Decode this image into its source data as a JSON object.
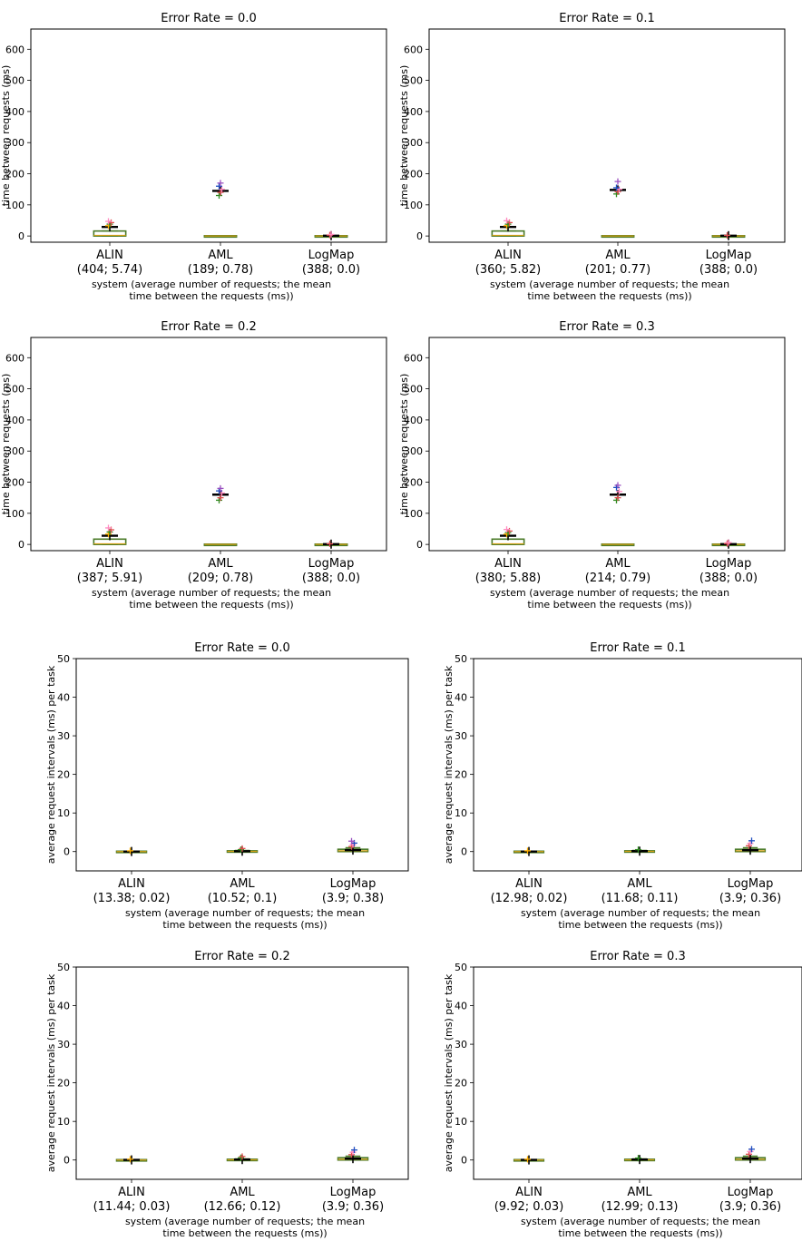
{
  "chart_data": [
    {
      "type": "box",
      "title": "Error Rate = 0.0",
      "ylabel": "time between requests (ms)",
      "xlabel_lines": [
        "system (average number of requests; the mean",
        "time between the requests (ms))"
      ],
      "yticks": [
        0,
        100,
        200,
        300,
        400,
        500,
        600
      ],
      "ylim": [
        -20,
        665
      ],
      "categories": [
        {
          "name": "ALIN",
          "stats": "(404; 5.74)"
        },
        {
          "name": "AML",
          "stats": "(189; 0.78)"
        },
        {
          "name": "LogMap",
          "stats": "(388; 0.0)"
        }
      ],
      "boxes": [
        {
          "q1": 0,
          "median": 2,
          "q3": 16,
          "whisker_low": 0,
          "whisker_high": 16,
          "mean": 29,
          "outliers": [
            33,
            38,
            43,
            47
          ]
        },
        {
          "q1": 0,
          "median": 0,
          "q3": 1,
          "whisker_low": 0,
          "whisker_high": 1,
          "mean": 145,
          "outliers": [
            130,
            140,
            150,
            160,
            170
          ]
        },
        {
          "q1": 0,
          "median": 0,
          "q3": 1,
          "whisker_low": 0,
          "whisker_high": 1,
          "mean": 1,
          "outliers": [
            3,
            5
          ]
        }
      ]
    },
    {
      "type": "box",
      "title": "Error Rate = 0.1",
      "ylabel": "time between requests (ms)",
      "xlabel_lines": [
        "system (average number of requests; the mean",
        "time between the requests (ms))"
      ],
      "yticks": [
        0,
        100,
        200,
        300,
        400,
        500,
        600
      ],
      "ylim": [
        -20,
        665
      ],
      "categories": [
        {
          "name": "ALIN",
          "stats": "(360; 5.82)"
        },
        {
          "name": "AML",
          "stats": "(201; 0.77)"
        },
        {
          "name": "LogMap",
          "stats": "(388; 0.0)"
        }
      ],
      "boxes": [
        {
          "q1": 0,
          "median": 2,
          "q3": 16,
          "whisker_low": 0,
          "whisker_high": 16,
          "mean": 29,
          "outliers": [
            33,
            38,
            43,
            49
          ]
        },
        {
          "q1": 0,
          "median": 0,
          "q3": 1,
          "whisker_low": 0,
          "whisker_high": 1,
          "mean": 148,
          "outliers": [
            135,
            142,
            150,
            155,
            175
          ]
        },
        {
          "q1": 0,
          "median": 0,
          "q3": 1,
          "whisker_low": 0,
          "whisker_high": 1,
          "mean": 1,
          "outliers": [
            2
          ]
        }
      ]
    },
    {
      "type": "box",
      "title": "Error Rate = 0.2",
      "ylabel": "time between requests (ms)",
      "xlabel_lines": [
        "system (average number of requests; the mean",
        "time between the requests (ms))"
      ],
      "yticks": [
        0,
        100,
        200,
        300,
        400,
        500,
        600
      ],
      "ylim": [
        -20,
        665
      ],
      "categories": [
        {
          "name": "ALIN",
          "stats": "(387; 5.91)"
        },
        {
          "name": "AML",
          "stats": "(209; 0.78)"
        },
        {
          "name": "LogMap",
          "stats": "(388; 0.0)"
        }
      ],
      "boxes": [
        {
          "q1": 0,
          "median": 2,
          "q3": 17,
          "whisker_low": 0,
          "whisker_high": 17,
          "mean": 28,
          "outliers": [
            33,
            40,
            47,
            53
          ]
        },
        {
          "q1": 0,
          "median": 0,
          "q3": 1,
          "whisker_low": 0,
          "whisker_high": 1,
          "mean": 160,
          "outliers": [
            142,
            150,
            165,
            172,
            180
          ]
        },
        {
          "q1": 0,
          "median": 0,
          "q3": 1,
          "whisker_low": 0,
          "whisker_high": 1,
          "mean": 1,
          "outliers": [
            2
          ]
        }
      ]
    },
    {
      "type": "box",
      "title": "Error Rate = 0.3",
      "ylabel": "time between requests (ms)",
      "xlabel_lines": [
        "system (average number of requests; the mean",
        "time between the requests (ms))"
      ],
      "yticks": [
        0,
        100,
        200,
        300,
        400,
        500,
        600
      ],
      "ylim": [
        -20,
        665
      ],
      "categories": [
        {
          "name": "ALIN",
          "stats": "(380; 5.88)"
        },
        {
          "name": "AML",
          "stats": "(214; 0.79)"
        },
        {
          "name": "LogMap",
          "stats": "(388; 0.0)"
        }
      ],
      "boxes": [
        {
          "q1": 0,
          "median": 2,
          "q3": 17,
          "whisker_low": 0,
          "whisker_high": 17,
          "mean": 28,
          "outliers": [
            33,
            38,
            43,
            48
          ]
        },
        {
          "q1": 0,
          "median": 0,
          "q3": 1,
          "whisker_low": 0,
          "whisker_high": 1,
          "mean": 160,
          "outliers": [
            142,
            150,
            170,
            183,
            190
          ]
        },
        {
          "q1": 0,
          "median": 0,
          "q3": 1,
          "whisker_low": 0,
          "whisker_high": 1,
          "mean": 1,
          "outliers": [
            3,
            6
          ]
        }
      ]
    },
    {
      "type": "box",
      "title": "Error Rate = 0.0",
      "ylabel": "average request intervals (ms) per task",
      "xlabel_lines": [
        "system (average number of requests; the mean",
        "time between the requests (ms))"
      ],
      "yticks": [
        0,
        10,
        20,
        30,
        40,
        50
      ],
      "ylim": [
        -5,
        50
      ],
      "categories": [
        {
          "name": "ALIN",
          "stats": "(13.38; 0.02)"
        },
        {
          "name": "AML",
          "stats": "(10.52; 0.1)"
        },
        {
          "name": "LogMap",
          "stats": "(3.9; 0.38)"
        }
      ],
      "boxes": [
        {
          "q1": 0,
          "median": 0,
          "q3": 0.1,
          "whisker_low": 0,
          "whisker_high": 0.1,
          "mean": 0.02,
          "outliers": [
            0.2
          ]
        },
        {
          "q1": 0,
          "median": 0.05,
          "q3": 0.2,
          "whisker_low": 0,
          "whisker_high": 0.3,
          "mean": 0.1,
          "outliers": [
            0.5,
            0.8
          ]
        },
        {
          "q1": 0,
          "median": 0.2,
          "q3": 0.6,
          "whisker_low": 0,
          "whisker_high": 1,
          "mean": 0.38,
          "outliers": [
            1.3,
            1.8,
            2.2,
            2.7
          ]
        }
      ]
    },
    {
      "type": "box",
      "title": "Error Rate = 0.1",
      "ylabel": "average request intervals (ms) per task",
      "xlabel_lines": [
        "system (average number of requests; the mean",
        "time between the requests (ms))"
      ],
      "yticks": [
        0,
        10,
        20,
        30,
        40,
        50
      ],
      "ylim": [
        -5,
        50
      ],
      "categories": [
        {
          "name": "ALIN",
          "stats": "(12.98; 0.02)"
        },
        {
          "name": "AML",
          "stats": "(11.68; 0.11)"
        },
        {
          "name": "LogMap",
          "stats": "(3.9; 0.36)"
        }
      ],
      "boxes": [
        {
          "q1": 0,
          "median": 0,
          "q3": 0.1,
          "whisker_low": 0,
          "whisker_high": 0.1,
          "mean": 0.02,
          "outliers": [
            0.2
          ]
        },
        {
          "q1": 0,
          "median": 0.05,
          "q3": 0.2,
          "whisker_low": 0,
          "whisker_high": 0.3,
          "mean": 0.11,
          "outliers": [
            0.5
          ]
        },
        {
          "q1": 0,
          "median": 0.2,
          "q3": 0.6,
          "whisker_low": 0,
          "whisker_high": 1,
          "mean": 0.36,
          "outliers": [
            1.5,
            2.1,
            2.8
          ]
        }
      ]
    },
    {
      "type": "box",
      "title": "Error Rate = 0.2",
      "ylabel": "average request intervals (ms) per task",
      "xlabel_lines": [
        "system (average number of requests; the mean",
        "time between the requests (ms))"
      ],
      "yticks": [
        0,
        10,
        20,
        30,
        40,
        50
      ],
      "ylim": [
        -5,
        50
      ],
      "categories": [
        {
          "name": "ALIN",
          "stats": "(11.44; 0.03)"
        },
        {
          "name": "AML",
          "stats": "(12.66; 0.12)"
        },
        {
          "name": "LogMap",
          "stats": "(3.9; 0.36)"
        }
      ],
      "boxes": [
        {
          "q1": 0,
          "median": 0,
          "q3": 0.1,
          "whisker_low": 0,
          "whisker_high": 0.1,
          "mean": 0.03,
          "outliers": [
            0.2
          ]
        },
        {
          "q1": 0,
          "median": 0.05,
          "q3": 0.2,
          "whisker_low": 0,
          "whisker_high": 0.3,
          "mean": 0.12,
          "outliers": [
            0.6,
            0.9
          ]
        },
        {
          "q1": 0,
          "median": 0.2,
          "q3": 0.6,
          "whisker_low": 0,
          "whisker_high": 1,
          "mean": 0.36,
          "outliers": [
            1.4,
            2.0,
            2.6
          ]
        }
      ]
    },
    {
      "type": "box",
      "title": "Error Rate = 0.3",
      "ylabel": "average request intervals (ms) per task",
      "xlabel_lines": [
        "system (average number of requests; the mean",
        "time between the requests (ms))"
      ],
      "yticks": [
        0,
        10,
        20,
        30,
        40,
        50
      ],
      "ylim": [
        -5,
        50
      ],
      "categories": [
        {
          "name": "ALIN",
          "stats": "(9.92; 0.03)"
        },
        {
          "name": "AML",
          "stats": "(12.99; 0.13)"
        },
        {
          "name": "LogMap",
          "stats": "(3.9; 0.36)"
        }
      ],
      "boxes": [
        {
          "q1": 0,
          "median": 0,
          "q3": 0.1,
          "whisker_low": 0,
          "whisker_high": 0.1,
          "mean": 0.03,
          "outliers": [
            0.2
          ]
        },
        {
          "q1": 0,
          "median": 0.05,
          "q3": 0.2,
          "whisker_low": 0,
          "whisker_high": 0.3,
          "mean": 0.13,
          "outliers": [
            0.5
          ]
        },
        {
          "q1": 0,
          "median": 0.2,
          "q3": 0.6,
          "whisker_low": 0,
          "whisker_high": 1,
          "mean": 0.36,
          "outliers": [
            1.5,
            2.2,
            2.8
          ]
        }
      ]
    }
  ],
  "colors": {
    "box": "#4a7a28",
    "median": "#d4a017",
    "mean": "#000000",
    "outlier_palette": [
      "#ffb000",
      "#2e8b20",
      "#e05050",
      "#ff8ac0",
      "#1f4fc0",
      "#9a50c0"
    ]
  }
}
